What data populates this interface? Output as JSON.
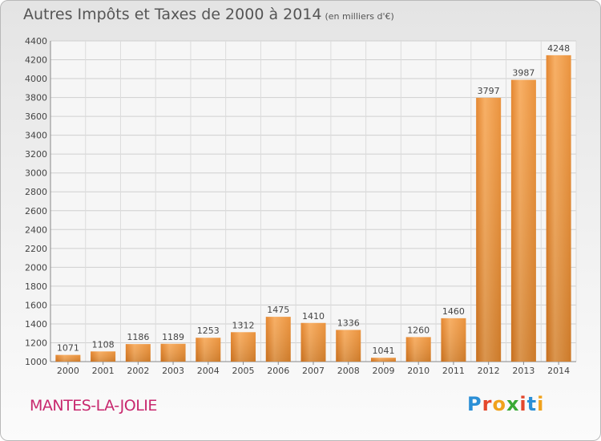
{
  "header": {
    "title": "Autres Impôts et Taxes de 2000 à 2014",
    "unit": "(en milliers d'€)"
  },
  "footer": {
    "town": "MANTES-LA-JOLIE",
    "logo_letters": [
      "P",
      "r",
      "o",
      "x",
      "i",
      "t",
      "i"
    ],
    "logo_colors": [
      "#2b8fd6",
      "#e4472c",
      "#f0a21c",
      "#39a935",
      "#e4472c",
      "#2b8fd6",
      "#f0a21c"
    ]
  },
  "colors": {
    "bar_light": "#f6a652",
    "bar_dark": "#e07a1c",
    "grid": "#cfcfcf",
    "text": "#444444"
  },
  "chart_data": {
    "type": "bar",
    "title": "Autres Impôts et Taxes de 2000 à 2014",
    "categories": [
      "2000",
      "2001",
      "2002",
      "2003",
      "2004",
      "2005",
      "2006",
      "2007",
      "2008",
      "2009",
      "2010",
      "2011",
      "2012",
      "2013",
      "2014"
    ],
    "values": [
      1071,
      1108,
      1186,
      1189,
      1253,
      1312,
      1475,
      1410,
      1336,
      1041,
      1260,
      1460,
      3797,
      3987,
      4248
    ],
    "ylim": [
      1000,
      4400
    ],
    "yticks": [
      1000,
      1200,
      1400,
      1600,
      1800,
      2000,
      2200,
      2400,
      2600,
      2800,
      3000,
      3200,
      3400,
      3600,
      3800,
      4000,
      4200,
      4400
    ],
    "grid": true,
    "legend": "none"
  }
}
